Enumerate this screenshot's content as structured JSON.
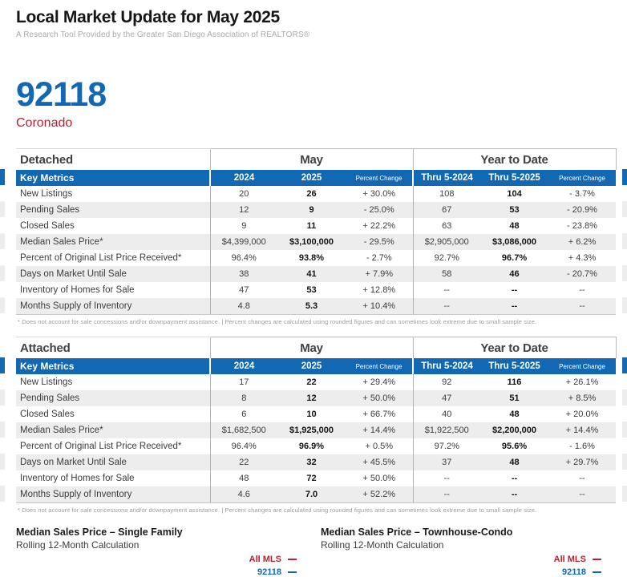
{
  "header": {
    "title": "Local Market Update for May 2025",
    "subtitle": "A Research Tool Provided by the Greater San Diego Association of REALTORS®"
  },
  "location": {
    "zip": "92118",
    "name": "Coronado"
  },
  "colors": {
    "blue": "#1268b2",
    "red": "#be1e2d",
    "stripe": "#ededee"
  },
  "labels": {
    "may": "May",
    "ytd": "Year to Date",
    "key_metrics": "Key Metrics",
    "columns": [
      "2024",
      "2025",
      "Percent Change",
      "Thru 5-2024",
      "Thru 5-2025",
      "Percent Change"
    ],
    "footnote": "* Does not account for sale concessions and/or downpayment assistance.  |  Percent changes are calculated using rounded figures and can sometimes look extreme due to small sample size."
  },
  "tables": [
    {
      "section": "Detached",
      "rows": [
        {
          "label": "New Listings",
          "values": [
            "20",
            "26",
            "+ 30.0%",
            "108",
            "104",
            "- 3.7%"
          ]
        },
        {
          "label": "Pending Sales",
          "values": [
            "12",
            "9",
            "- 25.0%",
            "67",
            "53",
            "- 20.9%"
          ]
        },
        {
          "label": "Closed Sales",
          "values": [
            "9",
            "11",
            "+ 22.2%",
            "63",
            "48",
            "- 23.8%"
          ]
        },
        {
          "label": "Median Sales Price*",
          "values": [
            "$4,399,000",
            "$3,100,000",
            "- 29.5%",
            "$2,905,000",
            "$3,086,000",
            "+ 6.2%"
          ]
        },
        {
          "label": "Percent of Original List Price Received*",
          "values": [
            "96.4%",
            "93.8%",
            "- 2.7%",
            "92.7%",
            "96.7%",
            "+ 4.3%"
          ]
        },
        {
          "label": "Days on Market Until Sale",
          "values": [
            "38",
            "41",
            "+ 7.9%",
            "58",
            "46",
            "- 20.7%"
          ]
        },
        {
          "label": "Inventory of Homes for Sale",
          "values": [
            "47",
            "53",
            "+ 12.8%",
            "--",
            "--",
            "--"
          ]
        },
        {
          "label": "Months Supply of Inventory",
          "values": [
            "4.8",
            "5.3",
            "+ 10.4%",
            "--",
            "--",
            "--"
          ]
        }
      ]
    },
    {
      "section": "Attached",
      "rows": [
        {
          "label": "New Listings",
          "values": [
            "17",
            "22",
            "+ 29.4%",
            "92",
            "116",
            "+ 26.1%"
          ]
        },
        {
          "label": "Pending Sales",
          "values": [
            "8",
            "12",
            "+ 50.0%",
            "47",
            "51",
            "+ 8.5%"
          ]
        },
        {
          "label": "Closed Sales",
          "values": [
            "6",
            "10",
            "+ 66.7%",
            "40",
            "48",
            "+ 20.0%"
          ]
        },
        {
          "label": "Median Sales Price*",
          "values": [
            "$1,682,500",
            "$1,925,000",
            "+ 14.4%",
            "$1,922,500",
            "$2,200,000",
            "+ 14.4%"
          ]
        },
        {
          "label": "Percent of Original List Price Received*",
          "values": [
            "96.4%",
            "96.9%",
            "+ 0.5%",
            "97.2%",
            "95.6%",
            "- 1.6%"
          ]
        },
        {
          "label": "Days on Market Until Sale",
          "values": [
            "22",
            "32",
            "+ 45.5%",
            "37",
            "48",
            "+ 29.7%"
          ]
        },
        {
          "label": "Inventory of Homes for Sale",
          "values": [
            "48",
            "72",
            "+ 50.0%",
            "--",
            "--",
            "--"
          ]
        },
        {
          "label": "Months Supply of Inventory",
          "values": [
            "4.6",
            "7.0",
            "+ 52.2%",
            "--",
            "--",
            "--"
          ]
        }
      ]
    }
  ],
  "charts": [
    {
      "title": "Median Sales Price – Single Family",
      "subtitle": "Rolling 12-Month Calculation",
      "legend": [
        {
          "label": "All MLS"
        },
        {
          "label": "92118"
        }
      ]
    },
    {
      "title": "Median Sales Price – Townhouse-Condo",
      "subtitle": "Rolling 12-Month Calculation",
      "legend": [
        {
          "label": "All MLS"
        },
        {
          "label": "92118"
        }
      ]
    }
  ]
}
